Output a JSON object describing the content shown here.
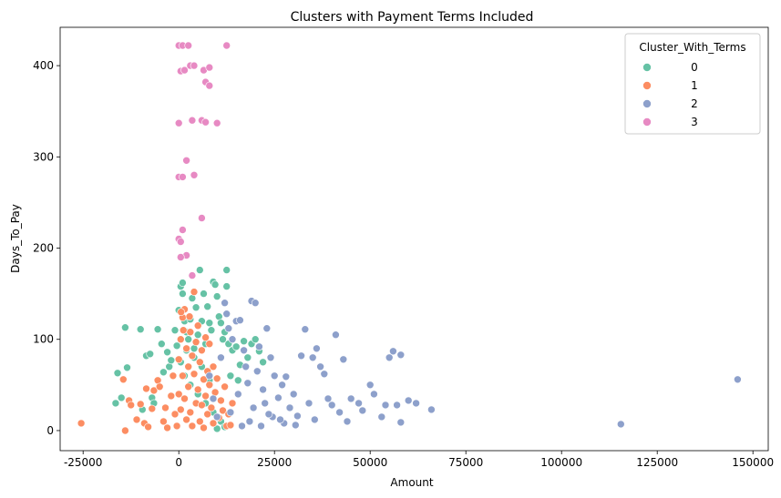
{
  "chart_data": {
    "type": "scatter",
    "title": "Clusters with Payment Terms Included",
    "xlabel": "Amount",
    "ylabel": "Days_To_Pay",
    "xlim": [
      -31000,
      154000
    ],
    "ylim": [
      -22,
      442
    ],
    "xticks": [
      -25000,
      0,
      25000,
      50000,
      75000,
      100000,
      125000,
      150000
    ],
    "yticks": [
      0,
      100,
      200,
      300,
      400
    ],
    "grid": false,
    "legend": {
      "title": "Cluster_With_Terms",
      "position": "top-right"
    },
    "series": [
      {
        "name": "0",
        "color": "#66c2a5",
        "points": [
          [
            -16000,
            63
          ],
          [
            -16500,
            30
          ],
          [
            -15000,
            36
          ],
          [
            -14000,
            113
          ],
          [
            -13500,
            69
          ],
          [
            -10000,
            111
          ],
          [
            -9500,
            23
          ],
          [
            -8500,
            82
          ],
          [
            -7500,
            84
          ],
          [
            -7000,
            36
          ],
          [
            -6500,
            30
          ],
          [
            -5500,
            111
          ],
          [
            -4500,
            95
          ],
          [
            -4000,
            64
          ],
          [
            -3000,
            86
          ],
          [
            -2500,
            70
          ],
          [
            -2000,
            77
          ],
          [
            -1000,
            110
          ],
          [
            -500,
            93
          ],
          [
            0,
            132
          ],
          [
            500,
            158
          ],
          [
            1000,
            150
          ],
          [
            1000,
            162
          ],
          [
            1500,
            120
          ],
          [
            2000,
            108
          ],
          [
            2500,
            100
          ],
          [
            3000,
            122
          ],
          [
            3500,
            145
          ],
          [
            4000,
            90
          ],
          [
            4500,
            135
          ],
          [
            5000,
            105
          ],
          [
            5500,
            176
          ],
          [
            6000,
            120
          ],
          [
            6500,
            150
          ],
          [
            7000,
            95
          ],
          [
            7500,
            136
          ],
          [
            8000,
            118
          ],
          [
            8500,
            110
          ],
          [
            9000,
            163
          ],
          [
            9500,
            160
          ],
          [
            10000,
            147
          ],
          [
            10500,
            125
          ],
          [
            11000,
            118
          ],
          [
            11500,
            100
          ],
          [
            12000,
            108
          ],
          [
            12500,
            176
          ],
          [
            12500,
            158
          ],
          [
            13000,
            95
          ],
          [
            14000,
            88
          ],
          [
            15000,
            92
          ],
          [
            16000,
            72
          ],
          [
            17000,
            98
          ],
          [
            18000,
            80
          ],
          [
            19000,
            95
          ],
          [
            20000,
            100
          ],
          [
            21000,
            87
          ],
          [
            22000,
            75
          ],
          [
            1500,
            60
          ],
          [
            3000,
            50
          ],
          [
            5000,
            40
          ],
          [
            7000,
            30
          ],
          [
            9000,
            20
          ],
          [
            11000,
            10
          ],
          [
            12000,
            4
          ],
          [
            10000,
            2
          ],
          [
            6000,
            70
          ],
          [
            8000,
            55
          ],
          [
            4000,
            80
          ],
          [
            2000,
            88
          ],
          [
            500,
            75
          ],
          [
            13500,
            60
          ],
          [
            15500,
            55
          ]
        ]
      },
      {
        "name": "1",
        "color": "#fc8d62",
        "points": [
          [
            -25500,
            8
          ],
          [
            -14500,
            56
          ],
          [
            -14000,
            0
          ],
          [
            -13000,
            33
          ],
          [
            -12500,
            28
          ],
          [
            -11000,
            12
          ],
          [
            -10000,
            29
          ],
          [
            -9000,
            8
          ],
          [
            -8500,
            46
          ],
          [
            -8000,
            4
          ],
          [
            -7000,
            24
          ],
          [
            -6500,
            44
          ],
          [
            -5500,
            55
          ],
          [
            -5000,
            48
          ],
          [
            -4000,
            10
          ],
          [
            -3500,
            25
          ],
          [
            -3000,
            3
          ],
          [
            -2000,
            38
          ],
          [
            -1500,
            60
          ],
          [
            -1000,
            18
          ],
          [
            -500,
            5
          ],
          [
            0,
            78
          ],
          [
            0,
            40
          ],
          [
            500,
            100
          ],
          [
            500,
            23
          ],
          [
            1000,
            124
          ],
          [
            1000,
            60
          ],
          [
            1500,
            133
          ],
          [
            1500,
            35
          ],
          [
            2000,
            90
          ],
          [
            2000,
            12
          ],
          [
            2500,
            70
          ],
          [
            2500,
            48
          ],
          [
            3000,
            108
          ],
          [
            3000,
            20
          ],
          [
            3500,
            82
          ],
          [
            3500,
            5
          ],
          [
            4000,
            152
          ],
          [
            4000,
            62
          ],
          [
            4500,
            97
          ],
          [
            4500,
            30
          ],
          [
            5000,
            115
          ],
          [
            5000,
            45
          ],
          [
            5500,
            75
          ],
          [
            5500,
            10
          ],
          [
            6000,
            88
          ],
          [
            6000,
            28
          ],
          [
            6500,
            56
          ],
          [
            6500,
            3
          ],
          [
            7000,
            102
          ],
          [
            7000,
            38
          ],
          [
            7500,
            65
          ],
          [
            7500,
            18
          ],
          [
            8000,
            95
          ],
          [
            8000,
            50
          ],
          [
            8500,
            25
          ],
          [
            9000,
            70
          ],
          [
            9000,
            8
          ],
          [
            9500,
            42
          ],
          [
            10000,
            57
          ],
          [
            10500,
            14
          ],
          [
            11000,
            33
          ],
          [
            11500,
            22
          ],
          [
            12000,
            48
          ],
          [
            12500,
            5
          ],
          [
            13000,
            18
          ],
          [
            13500,
            6
          ],
          [
            14000,
            30
          ],
          [
            1200,
            110
          ],
          [
            2800,
            125
          ],
          [
            600,
            130
          ]
        ]
      },
      {
        "name": "2",
        "color": "#8da0cb",
        "points": [
          [
            8000,
            60
          ],
          [
            9000,
            35
          ],
          [
            10000,
            15
          ],
          [
            11000,
            80
          ],
          [
            12000,
            140
          ],
          [
            12500,
            128
          ],
          [
            13000,
            112
          ],
          [
            14000,
            100
          ],
          [
            15000,
            120
          ],
          [
            16000,
            121
          ],
          [
            17000,
            88
          ],
          [
            17500,
            70
          ],
          [
            18000,
            52
          ],
          [
            19000,
            142
          ],
          [
            20000,
            140
          ],
          [
            21000,
            92
          ],
          [
            22000,
            45
          ],
          [
            22500,
            30
          ],
          [
            23000,
            112
          ],
          [
            24000,
            80
          ],
          [
            25000,
            60
          ],
          [
            26000,
            36
          ],
          [
            27000,
            50
          ],
          [
            28000,
            59
          ],
          [
            29000,
            25
          ],
          [
            30000,
            40
          ],
          [
            31000,
            16
          ],
          [
            32000,
            82
          ],
          [
            33000,
            111
          ],
          [
            34000,
            30
          ],
          [
            35000,
            80
          ],
          [
            36000,
            90
          ],
          [
            37000,
            70
          ],
          [
            38000,
            62
          ],
          [
            39000,
            35
          ],
          [
            40000,
            28
          ],
          [
            41000,
            105
          ],
          [
            42000,
            20
          ],
          [
            43000,
            78
          ],
          [
            45000,
            35
          ],
          [
            48000,
            22
          ],
          [
            50000,
            50
          ],
          [
            53000,
            15
          ],
          [
            54000,
            28
          ],
          [
            55000,
            80
          ],
          [
            56000,
            87
          ],
          [
            57000,
            28
          ],
          [
            58000,
            83
          ],
          [
            58000,
            9
          ],
          [
            60000,
            33
          ],
          [
            66000,
            23
          ],
          [
            115500,
            7
          ],
          [
            146000,
            56
          ],
          [
            18500,
            10
          ],
          [
            21500,
            5
          ],
          [
            24500,
            15
          ],
          [
            27500,
            8
          ],
          [
            30500,
            6
          ],
          [
            35500,
            12
          ],
          [
            13500,
            20
          ],
          [
            15500,
            40
          ],
          [
            19500,
            25
          ],
          [
            23500,
            18
          ],
          [
            16500,
            5
          ],
          [
            26500,
            12
          ],
          [
            20500,
            65
          ],
          [
            44000,
            10
          ],
          [
            47000,
            30
          ],
          [
            51000,
            40
          ],
          [
            62000,
            30
          ]
        ]
      },
      {
        "name": "3",
        "color": "#e78ac3",
        "points": [
          [
            0,
            422
          ],
          [
            1000,
            422
          ],
          [
            2500,
            422
          ],
          [
            12500,
            422
          ],
          [
            500,
            394
          ],
          [
            1500,
            395
          ],
          [
            3000,
            400
          ],
          [
            4000,
            400
          ],
          [
            6500,
            395
          ],
          [
            8000,
            398
          ],
          [
            7000,
            382
          ],
          [
            8000,
            378
          ],
          [
            0,
            337
          ],
          [
            3500,
            340
          ],
          [
            6000,
            340
          ],
          [
            7000,
            338
          ],
          [
            10000,
            337
          ],
          [
            2000,
            296
          ],
          [
            0,
            278
          ],
          [
            1000,
            278
          ],
          [
            4000,
            280
          ],
          [
            6000,
            233
          ],
          [
            1000,
            220
          ],
          [
            0,
            210
          ],
          [
            500,
            207
          ],
          [
            2000,
            192
          ],
          [
            500,
            190
          ],
          [
            3500,
            170
          ]
        ]
      }
    ]
  }
}
